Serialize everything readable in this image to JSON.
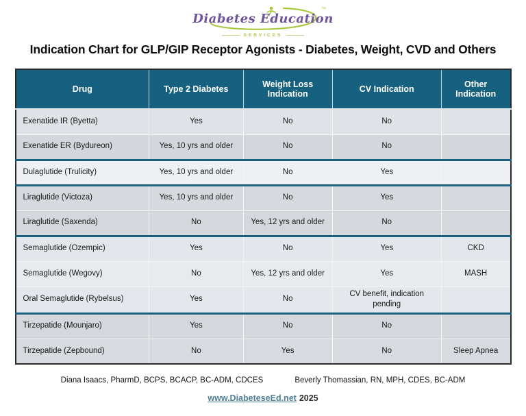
{
  "logo": {
    "brand": "Diabetes Education",
    "services": "SERVICES",
    "trademark": "™"
  },
  "title": "Indication Chart for GLP/GIP Receptor Agonists - Diabetes, Weight, CVD and Others",
  "table": {
    "columns": [
      "Drug",
      "Type 2 Diabetes",
      "Weight Loss Indication",
      "CV Indication",
      "Other Indication"
    ],
    "rows": [
      {
        "cells": [
          "Exenatide IR (Byetta)",
          "Yes",
          "No",
          "No",
          ""
        ],
        "bg": "#dfe2e6",
        "group_end": false
      },
      {
        "cells": [
          "Exenatide ER (Bydureon)",
          "Yes, 10 yrs and older",
          "No",
          "No",
          ""
        ],
        "bg": "#d3d6db",
        "group_end": true
      },
      {
        "cells": [
          "Dulaglutide (Trulicity)",
          "Yes, 10 yrs and older",
          "No",
          "Yes",
          ""
        ],
        "bg": "#eef0f3",
        "group_end": true
      },
      {
        "cells": [
          "Liraglutide (Victoza)",
          "Yes, 10 yrs and older",
          "No",
          "Yes",
          ""
        ],
        "bg": "#d6d9dd",
        "group_end": false
      },
      {
        "cells": [
          "Liraglutide (Saxenda)",
          "No",
          "Yes, 12 yrs and older",
          "No",
          ""
        ],
        "bg": "#d4d7db",
        "group_end": true
      },
      {
        "cells": [
          "Semaglutide (Ozempic)",
          "Yes",
          "No",
          "Yes",
          "CKD"
        ],
        "bg": "#e3e6ea",
        "group_end": false
      },
      {
        "cells": [
          "Semaglutide (Wegovy)",
          "No",
          "Yes, 12 yrs and older",
          "Yes",
          "MASH"
        ],
        "bg": "#e8ebee",
        "group_end": false
      },
      {
        "cells": [
          "Oral Semaglutide (Rybelsus)",
          "Yes",
          "No",
          "CV benefit, indication pending",
          ""
        ],
        "bg": "#e4e7eb",
        "group_end": true
      },
      {
        "cells": [
          "Tirzepatide (Mounjaro)",
          "Yes",
          "No",
          "No",
          ""
        ],
        "bg": "#d4d7db",
        "group_end": false
      },
      {
        "cells": [
          "Tirzepatide (Zepbound)",
          "No",
          "Yes",
          "No",
          "Sleep Apnea"
        ],
        "bg": "#d7dade",
        "group_end": false
      }
    ]
  },
  "footer": {
    "author_left": "Diana Isaacs, PharmD, BCPS, BCACP, BC-ADM, CDCES",
    "author_right": "Beverly Thomassian, RN, MPH, CDES, BC-ADM",
    "link": "www.DiabeteseEd.net",
    "year": "2025"
  },
  "colors": {
    "header_bg": "#176180",
    "header_text": "#ffffff",
    "group_separator": "#1a607f",
    "table_border": "#2b2b2b",
    "link": "#4d7f95",
    "logo_purple": "#6d549e",
    "logo_green": "#a9c83f"
  }
}
